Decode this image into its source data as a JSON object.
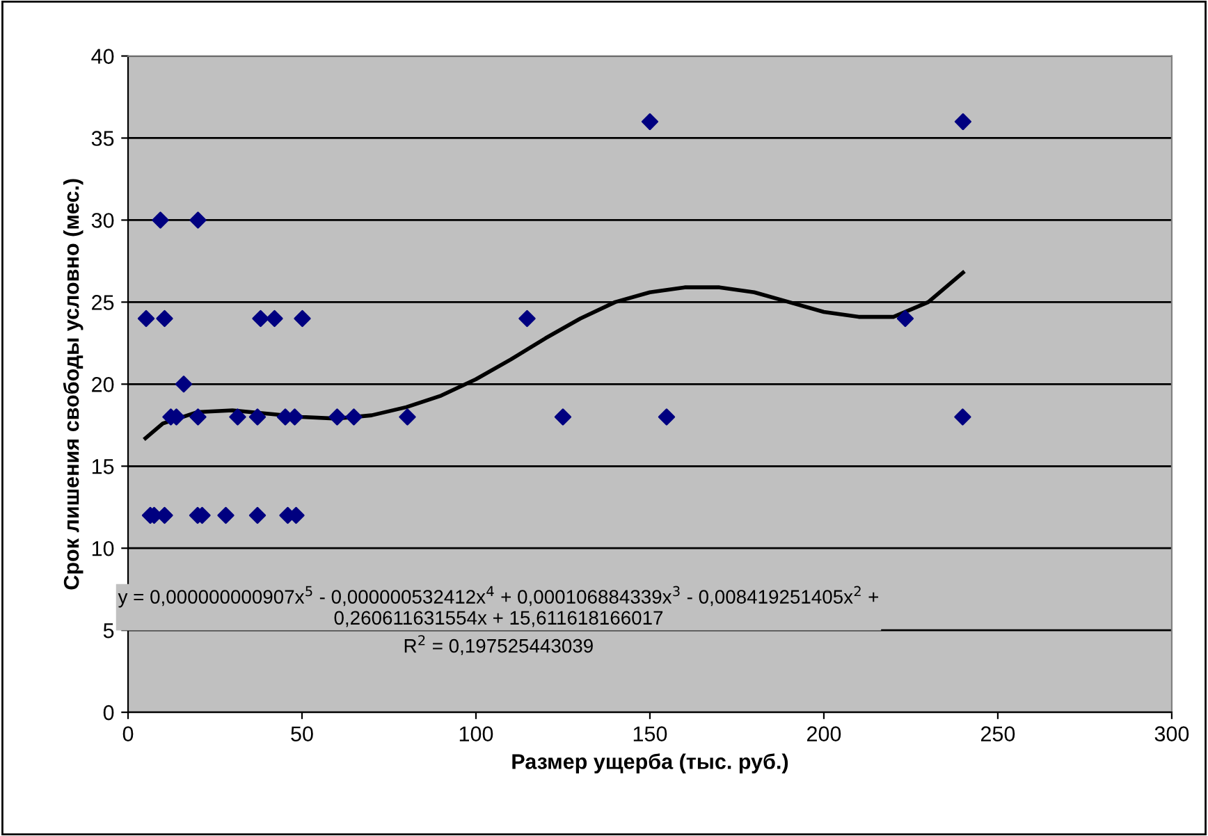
{
  "chart_data": {
    "type": "scatter",
    "xlabel": "Размер ущерба (тыс. руб.)",
    "ylabel": "Срок лишения свободы условно (мес.)",
    "xlim": [
      0,
      300
    ],
    "ylim": [
      0,
      40
    ],
    "xticks": [
      0,
      50,
      100,
      150,
      200,
      250,
      300
    ],
    "yticks": [
      0,
      5,
      10,
      15,
      20,
      25,
      30,
      35,
      40
    ],
    "grid": "y",
    "legend": false,
    "marker": "diamond",
    "series": [
      {
        "color": "#000080",
        "x": [
          9.3,
          20.1,
          5.2,
          10.5,
          38.1,
          42.1,
          50.1,
          114.7,
          223.4,
          16,
          12.3,
          13.9,
          20.1,
          31.5,
          37.2,
          45.2,
          47.9,
          60.1,
          64.9,
          80.3,
          125,
          154.8,
          239.9,
          6.4,
          7.5,
          10.5,
          20,
          21.3,
          28.1,
          37.2,
          45.9,
          48.3,
          150,
          240
        ],
        "values": [
          30,
          30,
          24,
          24,
          24,
          24,
          24,
          24,
          24,
          20,
          18,
          18,
          18,
          18,
          18,
          18,
          18,
          18,
          18,
          18,
          18,
          18,
          18,
          12,
          12,
          12,
          12,
          12,
          12,
          12,
          12,
          12,
          36,
          36
        ]
      },
      {
        "type": "line",
        "color": "#000000",
        "marker": "none",
        "line_style": "solid",
        "x": [
          5,
          10,
          20,
          30,
          40,
          50,
          60,
          70,
          80,
          90,
          100,
          110,
          120,
          130,
          140,
          150,
          160,
          170,
          180,
          190,
          200,
          210,
          220,
          230,
          240
        ],
        "values": [
          16.7,
          17.6,
          18.3,
          18.4,
          18.2,
          18.0,
          17.9,
          18.1,
          18.6,
          19.3,
          20.3,
          21.5,
          22.8,
          24.0,
          25.0,
          25.6,
          25.9,
          25.9,
          25.6,
          25.0,
          24.4,
          24.1,
          24.1,
          25.0,
          26.8
        ]
      }
    ],
    "annotations": [
      "y = 0,000000000907x$^{5}$ - 0,000000532412x$^{4}$ + 0,000106884339x$^{3}$ - 0,008419251405x$^{2}$ +\n0,260611631554x + 15,611618166017",
      "R$^{2}$ = 0,197525443039"
    ]
  }
}
